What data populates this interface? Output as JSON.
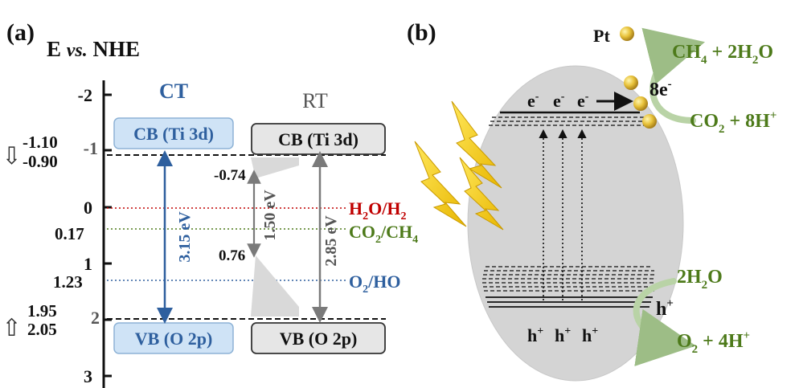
{
  "panel_a": {
    "label": "(a)",
    "axis_title_pre": "E ",
    "axis_title_vs": "vs.",
    "axis_title_post": " NHE",
    "ticks": [
      "-2",
      "-1",
      "0",
      "1",
      "2",
      "3"
    ],
    "ct": {
      "title": "CT",
      "cb_label": "CB (Ti 3d)",
      "vb_label": "VB (O 2p)",
      "gap": "3.15 eV",
      "cb_level": "-1.10",
      "cb_level_shift": "-0.90",
      "vb_level": "1.95",
      "vb_level_shift": "2.05"
    },
    "rt": {
      "title": "RT",
      "cb_label": "CB (Ti 3d)",
      "vb_label": "VB (O 2p)",
      "gap": "2.85 eV",
      "state_upper": "-0.74",
      "state_lower": "0.76",
      "state_gap": "1.50 eV"
    },
    "potentials": {
      "h2": {
        "label": "H",
        "sub": "2",
        "mid": "O/H",
        "sub2": "2",
        "value": "0",
        "color": "#c00000"
      },
      "co2": {
        "label": "CO",
        "sub": "2",
        "mid": "/CH",
        "sub2": "4",
        "value": "0.17",
        "color": "#4d7a1a"
      },
      "o2": {
        "label": "O",
        "sub": "2",
        "mid": "/H",
        "sub2": "",
        "tail": "O",
        "value": "1.23",
        "color": "#2e5f9e"
      }
    },
    "arrows": {
      "down_glyph": "⇩",
      "up_glyph": "⇧"
    }
  },
  "panel_b": {
    "label": "(b)",
    "pt_label": "Pt",
    "electrons": [
      "e",
      "e",
      "e"
    ],
    "electron_sup": "-",
    "holes": [
      "h",
      "h",
      "h"
    ],
    "hole_sup": "+",
    "reduction": {
      "product_a": "CH",
      "product_a_sub": "4",
      "product_b": " + 2H",
      "product_b_sub": "2",
      "product_c": "O",
      "electrons": "8e",
      "reactant_a": "CO",
      "reactant_a_sub": "2",
      "reactant_b": " + 8H",
      "product_color": "#4d7a1a"
    },
    "oxidation": {
      "reactant": "2H",
      "reactant_sub": "2",
      "reactant_tail": "O",
      "holes": "h",
      "product_a": "O",
      "product_a_sub": "2",
      "product_b": " + 4H",
      "product_color": "#4d7a1a"
    }
  }
}
